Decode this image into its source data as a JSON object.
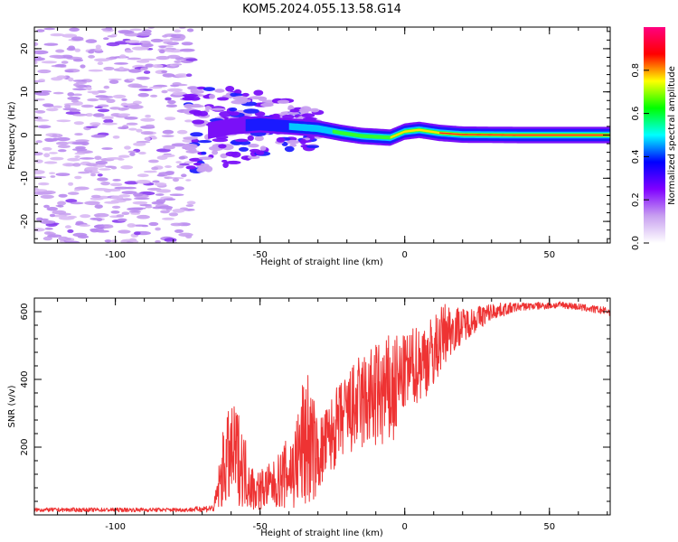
{
  "figure": {
    "title": "KOM5.2024.055.13.58.G14"
  },
  "chart_data": [
    {
      "type": "heatmap",
      "xlabel": "Height of straight line (km)",
      "ylabel": "Frequency (Hz)",
      "xlim": [
        -128,
        71
      ],
      "ylim": [
        -25,
        25
      ],
      "x_ticks": [
        -100,
        -50,
        0,
        50
      ],
      "y_ticks": [
        -20,
        -10,
        0,
        10,
        20
      ],
      "colorbar": {
        "label": "Normalized spectral amplitude",
        "range": [
          0,
          1
        ],
        "ticks": [
          0.0,
          0.2,
          0.4,
          0.6,
          0.8
        ],
        "colormap": [
          "#ffffff",
          "#c8a0f0",
          "#8000ff",
          "#0000ff",
          "#00ffff",
          "#00ff00",
          "#ffff00",
          "#ff0000",
          "#ff0080"
        ]
      },
      "signal_track": [
        {
          "x": -68,
          "f": 1.0
        },
        {
          "x": -60,
          "f": 2.0
        },
        {
          "x": -50,
          "f": 2.5
        },
        {
          "x": -40,
          "f": 2.0
        },
        {
          "x": -30,
          "f": 1.5
        },
        {
          "x": -22,
          "f": 0.5
        },
        {
          "x": -15,
          "f": -0.2
        },
        {
          "x": -5,
          "f": -0.6
        },
        {
          "x": 0,
          "f": 0.8
        },
        {
          "x": 5,
          "f": 1.2
        },
        {
          "x": 12,
          "f": 0.5
        },
        {
          "x": 20,
          "f": 0.1
        },
        {
          "x": 40,
          "f": 0.0
        },
        {
          "x": 71,
          "f": 0.0
        }
      ]
    },
    {
      "type": "line",
      "xlabel": "Height of straight line (km)",
      "ylabel": "SNR (v/v)",
      "xlim": [
        -128,
        71
      ],
      "ylim": [
        0,
        640
      ],
      "x_ticks": [
        -100,
        -50,
        0,
        50
      ],
      "y_ticks": [
        200,
        400,
        600
      ],
      "color": "#ee3333",
      "series": [
        {
          "envelope": [
            {
              "x": -128,
              "mean": 15,
              "amp": 6
            },
            {
              "x": -75,
              "mean": 15,
              "amp": 6
            },
            {
              "x": -66,
              "mean": 20,
              "amp": 12
            },
            {
              "x": -62,
              "mean": 160,
              "amp": 140
            },
            {
              "x": -58,
              "mean": 180,
              "amp": 150
            },
            {
              "x": -52,
              "mean": 70,
              "amp": 60
            },
            {
              "x": -45,
              "mean": 90,
              "amp": 70
            },
            {
              "x": -38,
              "mean": 140,
              "amp": 130
            },
            {
              "x": -34,
              "mean": 230,
              "amp": 230
            },
            {
              "x": -30,
              "mean": 170,
              "amp": 110
            },
            {
              "x": -22,
              "mean": 280,
              "amp": 120
            },
            {
              "x": -15,
              "mean": 330,
              "amp": 150
            },
            {
              "x": -10,
              "mean": 350,
              "amp": 160
            },
            {
              "x": -4,
              "mean": 360,
              "amp": 180
            },
            {
              "x": 0,
              "mean": 420,
              "amp": 110
            },
            {
              "x": 5,
              "mean": 450,
              "amp": 120
            },
            {
              "x": 10,
              "mean": 480,
              "amp": 110
            },
            {
              "x": 14,
              "mean": 540,
              "amp": 90
            },
            {
              "x": 20,
              "mean": 560,
              "amp": 50
            },
            {
              "x": 30,
              "mean": 600,
              "amp": 25
            },
            {
              "x": 40,
              "mean": 615,
              "amp": 12
            },
            {
              "x": 55,
              "mean": 620,
              "amp": 10
            },
            {
              "x": 71,
              "mean": 600,
              "amp": 12
            }
          ]
        }
      ]
    }
  ]
}
